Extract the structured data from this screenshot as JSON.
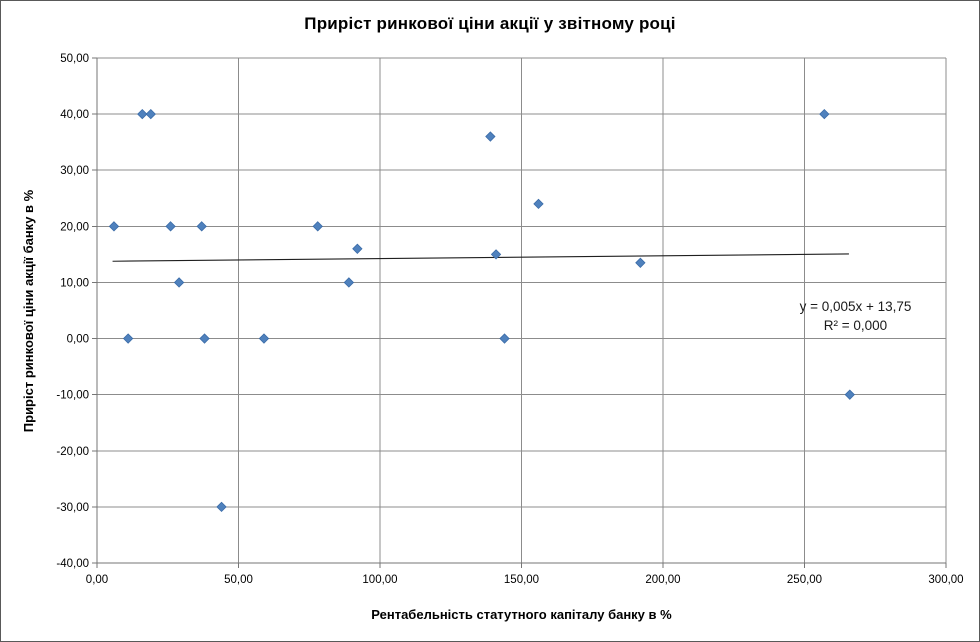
{
  "chart_data": {
    "type": "scatter",
    "title": "Приріст ринкової ціни акції у звітному році",
    "xlabel": "Рентабельність статутного капіталу банку в %",
    "ylabel": "Приріст ринкової ціни акції банку в %",
    "xlim": [
      0,
      300
    ],
    "ylim": [
      -40,
      50
    ],
    "grid": true,
    "legend": "none",
    "x_ticks": [
      {
        "v": 0,
        "label": "0,00"
      },
      {
        "v": 50,
        "label": "50,00"
      },
      {
        "v": 100,
        "label": "100,00"
      },
      {
        "v": 150,
        "label": "150,00"
      },
      {
        "v": 200,
        "label": "200,00"
      },
      {
        "v": 250,
        "label": "250,00"
      },
      {
        "v": 300,
        "label": "300,00"
      }
    ],
    "y_ticks": [
      {
        "v": 50,
        "label": "50,00"
      },
      {
        "v": 40,
        "label": "40,00"
      },
      {
        "v": 30,
        "label": "30,00"
      },
      {
        "v": 20,
        "label": "20,00"
      },
      {
        "v": 10,
        "label": "10,00"
      },
      {
        "v": 0,
        "label": "0,00"
      },
      {
        "v": -10,
        "label": "-10,00"
      },
      {
        "v": -20,
        "label": "-20,00"
      },
      {
        "v": -30,
        "label": "-30,00"
      },
      {
        "v": -40,
        "label": "-40,00"
      }
    ],
    "points": [
      {
        "x": 6,
        "y": 20
      },
      {
        "x": 11,
        "y": 0
      },
      {
        "x": 16,
        "y": 40
      },
      {
        "x": 19,
        "y": 40
      },
      {
        "x": 26,
        "y": 20
      },
      {
        "x": 29,
        "y": 10
      },
      {
        "x": 37,
        "y": 20
      },
      {
        "x": 38,
        "y": 0
      },
      {
        "x": 44,
        "y": -30
      },
      {
        "x": 59,
        "y": 0
      },
      {
        "x": 78,
        "y": 20
      },
      {
        "x": 89,
        "y": 10
      },
      {
        "x": 92,
        "y": 16
      },
      {
        "x": 139,
        "y": 36
      },
      {
        "x": 141,
        "y": 15
      },
      {
        "x": 144,
        "y": 0
      },
      {
        "x": 156,
        "y": 24
      },
      {
        "x": 192,
        "y": 13.5
      },
      {
        "x": 257,
        "y": 40
      },
      {
        "x": 266,
        "y": -10
      }
    ],
    "trendline": {
      "slope": 0.005,
      "intercept": 13.75,
      "x_start": 5.5,
      "x_end": 265.7,
      "equation": "y = 0,005x + 13,75",
      "r_squared": "R² = 0,000"
    },
    "colors": {
      "marker": "#4F81BD",
      "marker_edge": "#3B6CA8",
      "trendline": "#1f1f1f",
      "gridline": "#8c8c8c",
      "axis": "#757575",
      "text": "#000000"
    }
  }
}
